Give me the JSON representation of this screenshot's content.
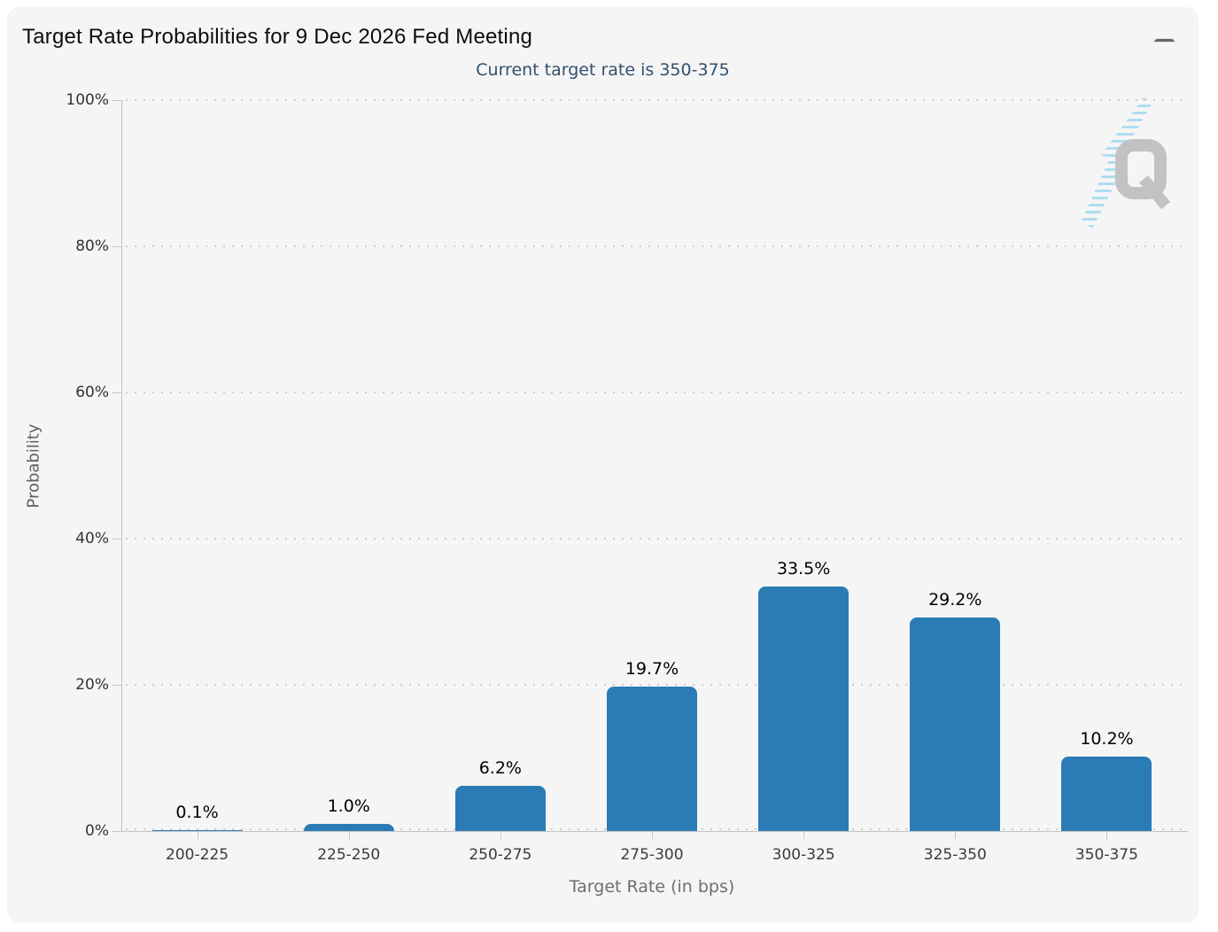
{
  "header": {
    "title": "Target Rate Probabilities for 9 Dec 2026 Fed Meeting",
    "subtitle": "Current target rate is 350-375"
  },
  "menu": {
    "icon": "hamburger-icon",
    "tooltip_label": "Chart context menu"
  },
  "watermark": {
    "letter": "Q",
    "q_color": "#c2c2c2",
    "bolt_color": "#aadcf0"
  },
  "chart_data": {
    "type": "bar",
    "title": "Target Rate Probabilities for 9 Dec 2026 Fed Meeting",
    "subtitle": "Current target rate is 350-375",
    "categories": [
      "200-225",
      "225-250",
      "250-275",
      "275-300",
      "300-325",
      "325-350",
      "350-375"
    ],
    "values": [
      0.1,
      1.0,
      6.2,
      19.7,
      33.5,
      29.2,
      10.2
    ],
    "data_labels": [
      "0.1%",
      "1.0%",
      "6.2%",
      "19.7%",
      "33.5%",
      "29.2%",
      "10.2%"
    ],
    "xlabel": "Target Rate (in bps)",
    "ylabel": "Probability",
    "ylim": [
      0,
      100
    ],
    "yticks": [
      0,
      20,
      40,
      60,
      80,
      100
    ],
    "ytick_labels": [
      "0%",
      "20%",
      "40%",
      "60%",
      "80%",
      "100%"
    ],
    "bar_color": "#2b7bb5",
    "grid": "dotted horizontal",
    "legend": "none"
  }
}
